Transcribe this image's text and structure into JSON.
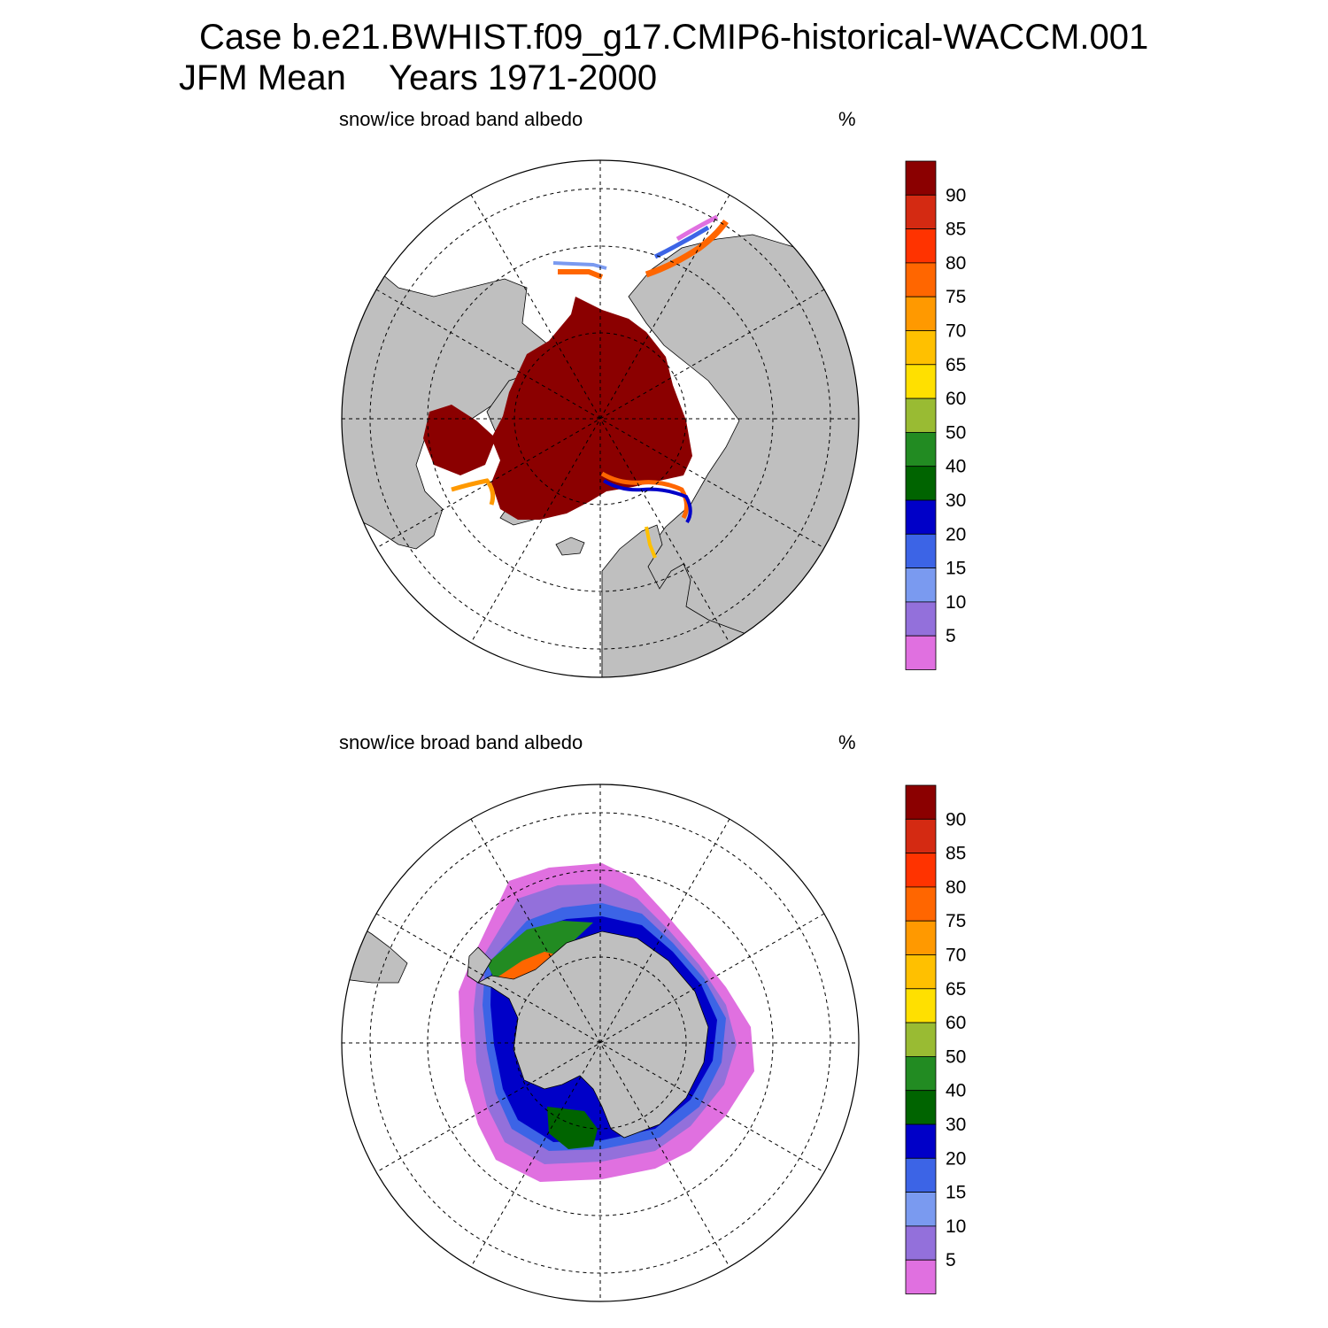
{
  "header": {
    "case_title": "Case b.e21.BWHIST.f09_g17.CMIP6-historical-WACCM.001",
    "season": "JFM Mean",
    "years": "Years 1971-2000"
  },
  "panels": [
    {
      "variable": "snow/ice broad band albedo",
      "units": "%",
      "hemisphere": "north"
    },
    {
      "variable": "snow/ice broad band albedo",
      "units": "%",
      "hemisphere": "south"
    }
  ],
  "colorbar": {
    "labels": [
      "90",
      "85",
      "80",
      "75",
      "70",
      "65",
      "60",
      "50",
      "40",
      "30",
      "20",
      "15",
      "10",
      "5"
    ],
    "colors": [
      "#8b0000",
      "#d42a12",
      "#ff3300",
      "#ff6600",
      "#ff9900",
      "#ffc000",
      "#ffe000",
      "#99bb33",
      "#228b22",
      "#006400",
      "#0000c8",
      "#3c64e6",
      "#7a9af0",
      "#9370db",
      "#e070e0"
    ]
  },
  "map_colors": {
    "land": "#bfbfbf",
    "ocean": "#ffffff",
    "ice_core": "#8b0000"
  }
}
